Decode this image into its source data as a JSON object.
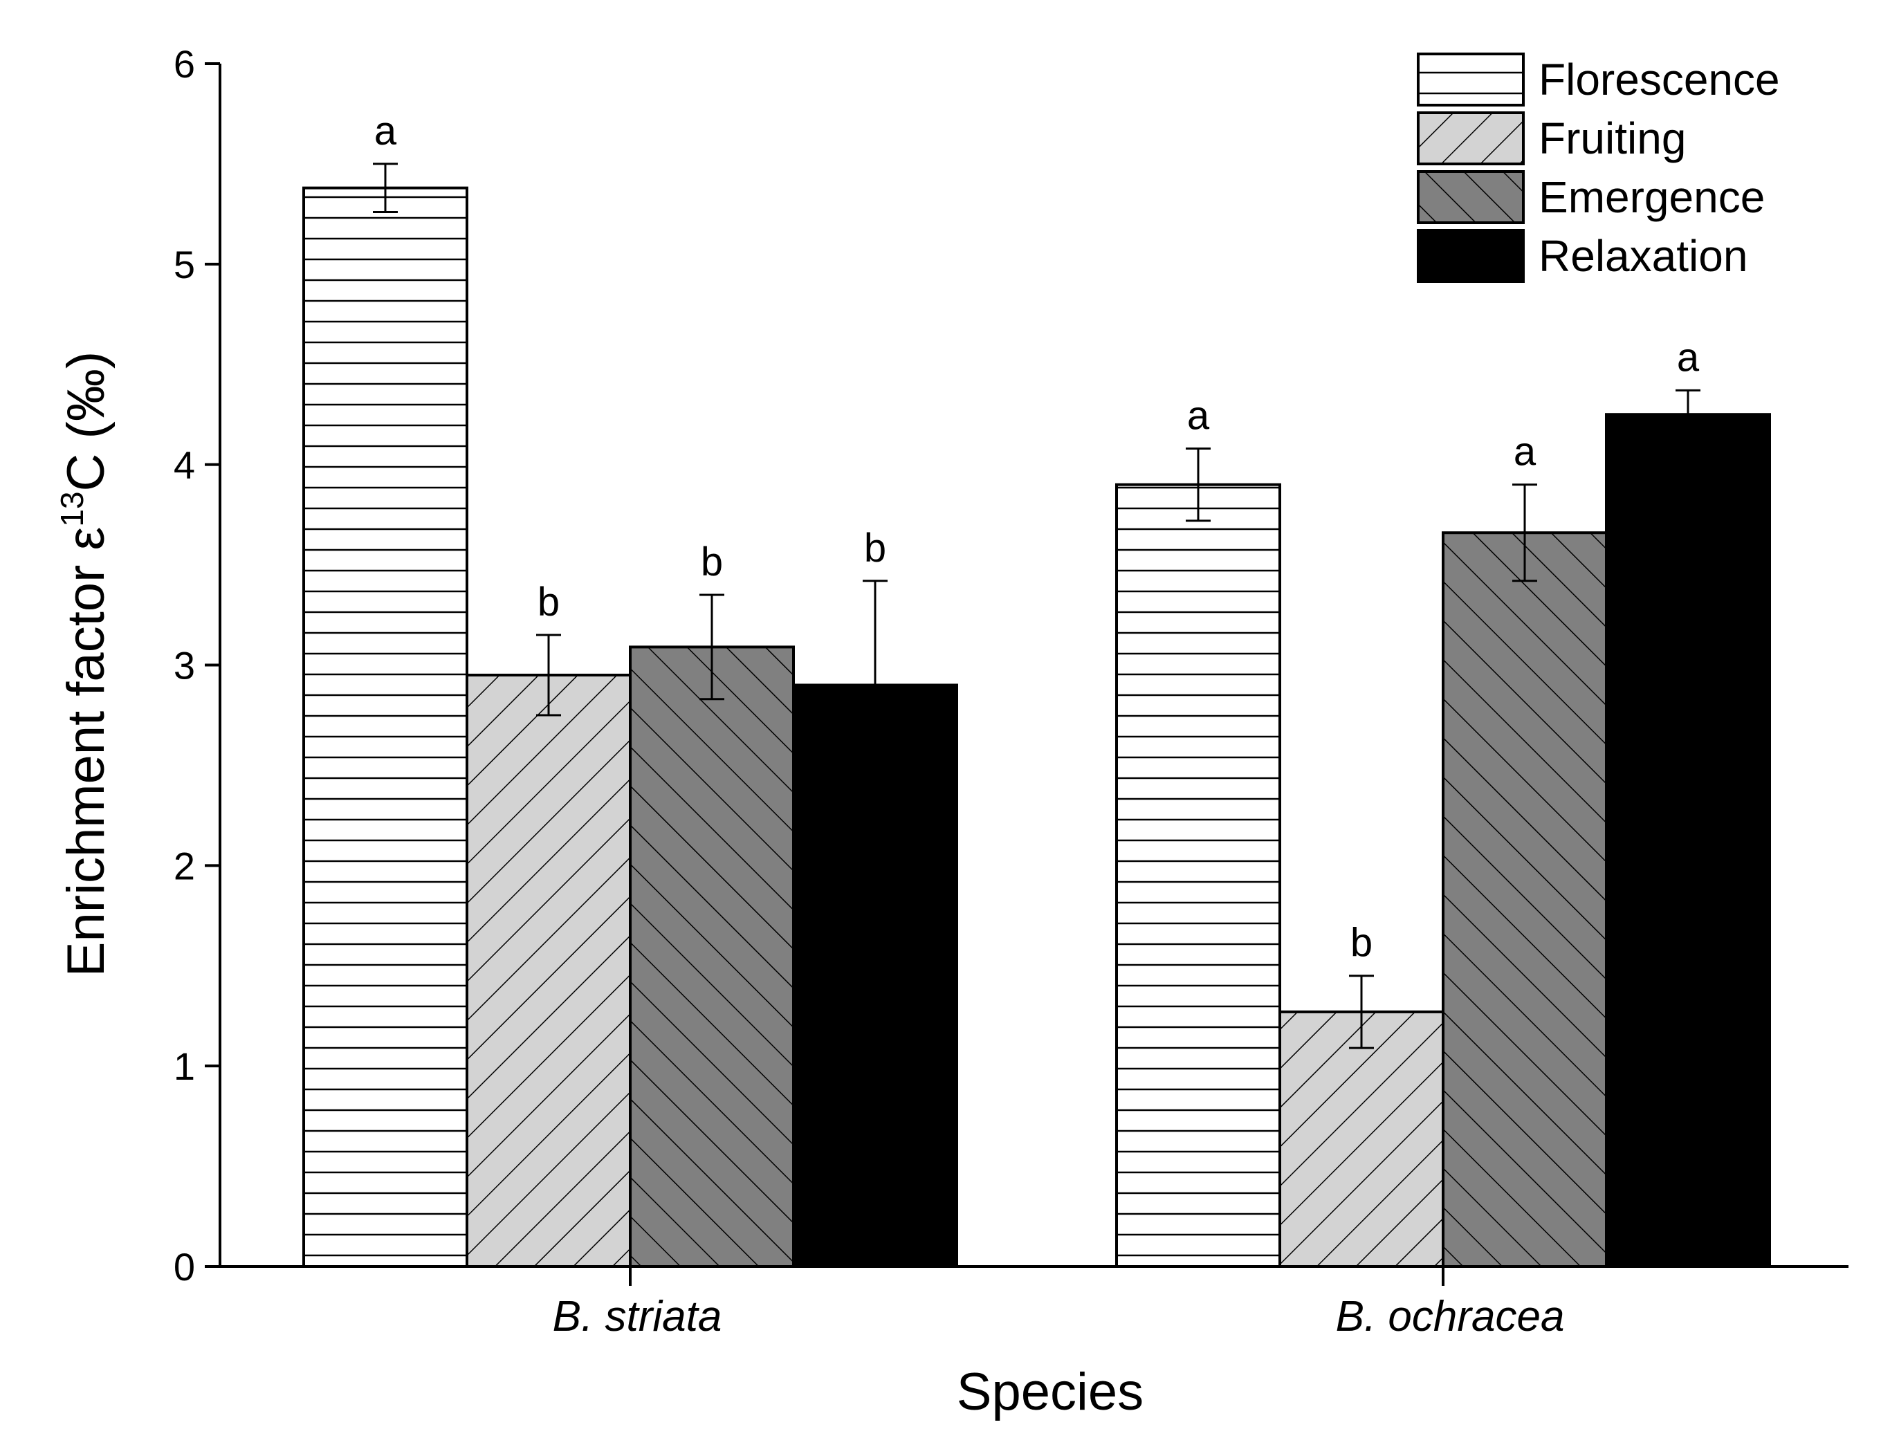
{
  "chart_data": {
    "type": "bar",
    "xlabel": "Species",
    "ylabel": {
      "main": "Enrichment factor ε",
      "superscript": "13",
      "suffix": "C (‰)"
    },
    "ylim": [
      0,
      6
    ],
    "yticks": [
      "0",
      "1",
      "2",
      "3",
      "4",
      "5",
      "6"
    ],
    "categories": [
      "B. striata",
      "B. ochracea"
    ],
    "legend_position": "top-right",
    "grid": false,
    "series": [
      {
        "name": "Florescence",
        "values": [
          5.38,
          3.9
        ],
        "errors": [
          0.12,
          0.18
        ],
        "letters": [
          "a",
          "a"
        ],
        "fill": "#ffffff",
        "pattern": "horizontal-lines"
      },
      {
        "name": "Fruiting",
        "values": [
          2.95,
          1.27
        ],
        "errors": [
          0.2,
          0.18
        ],
        "letters": [
          "b",
          "b"
        ],
        "fill": "#d3d3d3",
        "pattern": "forward-diagonal"
      },
      {
        "name": "Emergence",
        "values": [
          3.09,
          3.66
        ],
        "errors": [
          0.26,
          0.24
        ],
        "letters": [
          "b",
          "a"
        ],
        "fill": "#808080",
        "pattern": "back-diagonal"
      },
      {
        "name": "Relaxation",
        "values": [
          2.9,
          4.25
        ],
        "errors": [
          0.52,
          0.12
        ],
        "letters": [
          "b",
          "a"
        ],
        "fill": "#000000",
        "pattern": "solid"
      }
    ]
  }
}
